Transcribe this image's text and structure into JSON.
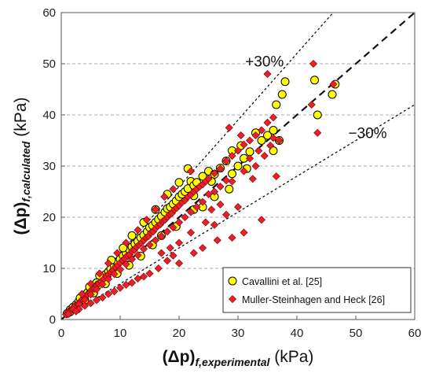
{
  "chart_data": {
    "type": "scatter",
    "title": "",
    "xlim": [
      0,
      60
    ],
    "ylim": [
      0,
      60
    ],
    "ticks": [
      "0",
      "10",
      "20",
      "30",
      "40",
      "50",
      "60"
    ],
    "grid": "horizontal dashed",
    "xlabel": {
      "main": "(Δp)",
      "sub": "f,experimental",
      "unit": " (kPa)"
    },
    "ylabel": {
      "main": "(Δp)",
      "sub": "f,calculated",
      "unit": " (kPa)"
    },
    "reference_lines": [
      {
        "label": "+30%",
        "slope": 1.3,
        "style": "dotted"
      },
      {
        "label": "",
        "slope": 1.0,
        "style": "dashed"
      },
      {
        "label": "−30%",
        "slope": 0.7,
        "style": "dotted"
      }
    ],
    "legend_position": "bottom-right",
    "series": [
      {
        "name": "Cavallini et al. [25]",
        "marker": "circle",
        "color": "#ffff00",
        "points": [
          [
            1.0,
            1.2
          ],
          [
            1.5,
            1.9
          ],
          [
            2.0,
            2.4
          ],
          [
            2.5,
            2.9
          ],
          [
            3.0,
            3.6
          ],
          [
            3.4,
            4.2
          ],
          [
            4.0,
            4.8
          ],
          [
            4.5,
            5.3
          ],
          [
            5.0,
            6.0
          ],
          [
            5.4,
            6.5
          ],
          [
            6.0,
            7.2
          ],
          [
            6.3,
            6.8
          ],
          [
            7.0,
            8.0
          ],
          [
            7.5,
            8.8
          ],
          [
            8.0,
            9.3
          ],
          [
            8.4,
            9.9
          ],
          [
            9.0,
            10.5
          ],
          [
            9.5,
            11.2
          ],
          [
            10.0,
            11.8
          ],
          [
            10.5,
            12.5
          ],
          [
            11.0,
            13.0
          ],
          [
            11.6,
            13.6
          ],
          [
            12.0,
            14.2
          ],
          [
            12.5,
            14.8
          ],
          [
            13.0,
            15.3
          ],
          [
            13.5,
            16.0
          ],
          [
            14.0,
            16.5
          ],
          [
            14.6,
            17.2
          ],
          [
            15.0,
            18.0
          ],
          [
            15.5,
            18.4
          ],
          [
            16.0,
            19.0
          ],
          [
            16.5,
            19.6
          ],
          [
            17.0,
            20.2
          ],
          [
            17.6,
            21.0
          ],
          [
            18.0,
            21.7
          ],
          [
            18.5,
            22.0
          ],
          [
            19.0,
            22.6
          ],
          [
            19.5,
            23.2
          ],
          [
            20.0,
            24.0
          ],
          [
            20.5,
            24.5
          ],
          [
            21.0,
            25.0
          ],
          [
            21.5,
            25.6
          ],
          [
            22.0,
            27.0
          ],
          [
            22.5,
            26.2
          ],
          [
            23.0,
            26.8
          ],
          [
            24.0,
            28.0
          ],
          [
            25.0,
            29.0
          ],
          [
            26.0,
            28.4
          ],
          [
            27.0,
            29.6
          ],
          [
            28.0,
            31.0
          ],
          [
            29.0,
            28.5
          ],
          [
            30.0,
            30.0
          ],
          [
            31.0,
            31.5
          ],
          [
            32.0,
            32.8
          ],
          [
            33.0,
            36.5
          ],
          [
            34.0,
            35.0
          ],
          [
            35.0,
            36.0
          ],
          [
            36.0,
            37.0
          ],
          [
            37.0,
            35.0
          ],
          [
            37.5,
            44.0
          ],
          [
            38.0,
            46.5
          ],
          [
            36.5,
            42.0
          ],
          [
            36.0,
            33.0
          ],
          [
            43.0,
            46.8
          ],
          [
            43.5,
            40.0
          ],
          [
            46.0,
            44.0
          ],
          [
            46.5,
            46.0
          ],
          [
            24.0,
            22.0
          ],
          [
            22.5,
            21.5
          ],
          [
            19.5,
            18.2
          ],
          [
            17.0,
            16.4
          ],
          [
            15.5,
            14.6
          ],
          [
            13.5,
            12.4
          ],
          [
            11.5,
            10.6
          ],
          [
            9.5,
            9.0
          ],
          [
            7.5,
            7.0
          ],
          [
            5.5,
            5.2
          ],
          [
            4.0,
            3.8
          ],
          [
            2.5,
            2.4
          ],
          [
            1.5,
            1.5
          ],
          [
            26.0,
            24.0
          ],
          [
            28.5,
            25.5
          ],
          [
            21.5,
            29.5
          ],
          [
            8.5,
            11.6
          ],
          [
            10.5,
            14.0
          ],
          [
            12.0,
            16.4
          ],
          [
            14.0,
            19.0
          ],
          [
            16.0,
            21.5
          ],
          [
            18.0,
            24.5
          ],
          [
            20.0,
            26.8
          ],
          [
            6.5,
            8.6
          ],
          [
            4.8,
            6.4
          ],
          [
            3.2,
            4.2
          ],
          [
            29.0,
            33.0
          ],
          [
            30.5,
            34.0
          ],
          [
            31.5,
            29.5
          ],
          [
            22.5,
            24.2
          ],
          [
            25.5,
            27.0
          ]
        ]
      },
      {
        "name": "Muller-Steinhagen and Heck [26]",
        "marker": "diamond",
        "color": "#e8202a",
        "points": [
          [
            0.8,
            1.0
          ],
          [
            1.2,
            1.5
          ],
          [
            1.6,
            1.6
          ],
          [
            2.0,
            2.3
          ],
          [
            2.4,
            2.8
          ],
          [
            2.8,
            3.0
          ],
          [
            3.2,
            3.5
          ],
          [
            3.6,
            4.0
          ],
          [
            4.0,
            4.3
          ],
          [
            4.4,
            4.9
          ],
          [
            4.8,
            5.2
          ],
          [
            5.2,
            5.9
          ],
          [
            5.6,
            6.0
          ],
          [
            6.0,
            6.6
          ],
          [
            6.4,
            7.0
          ],
          [
            6.8,
            7.5
          ],
          [
            7.2,
            7.9
          ],
          [
            7.6,
            8.5
          ],
          [
            8.0,
            8.8
          ],
          [
            8.4,
            9.3
          ],
          [
            8.8,
            9.6
          ],
          [
            9.2,
            10.3
          ],
          [
            9.6,
            10.6
          ],
          [
            10.0,
            11.1
          ],
          [
            10.4,
            11.6
          ],
          [
            10.8,
            11.9
          ],
          [
            11.2,
            12.5
          ],
          [
            11.6,
            12.7
          ],
          [
            12.0,
            13.4
          ],
          [
            12.4,
            13.6
          ],
          [
            12.8,
            14.2
          ],
          [
            13.2,
            14.6
          ],
          [
            13.6,
            15.0
          ],
          [
            14.0,
            15.5
          ],
          [
            14.4,
            16.0
          ],
          [
            14.8,
            16.3
          ],
          [
            15.2,
            17.0
          ],
          [
            15.6,
            17.2
          ],
          [
            16.0,
            17.8
          ],
          [
            16.4,
            18.3
          ],
          [
            16.8,
            18.6
          ],
          [
            17.2,
            19.2
          ],
          [
            17.6,
            19.5
          ],
          [
            18.0,
            20.0
          ],
          [
            18.4,
            20.6
          ],
          [
            18.8,
            20.8
          ],
          [
            19.2,
            21.5
          ],
          [
            19.6,
            21.8
          ],
          [
            20.0,
            22.3
          ],
          [
            20.5,
            22.9
          ],
          [
            21.0,
            23.3
          ],
          [
            21.5,
            24.0
          ],
          [
            22.0,
            24.4
          ],
          [
            22.5,
            25.0
          ],
          [
            23.0,
            25.5
          ],
          [
            23.5,
            26.0
          ],
          [
            24.0,
            26.4
          ],
          [
            24.5,
            27.0
          ],
          [
            25.0,
            27.5
          ],
          [
            26.0,
            28.6
          ],
          [
            27.0,
            29.5
          ],
          [
            28.0,
            31.0
          ],
          [
            29.0,
            32.0
          ],
          [
            30.0,
            33.0
          ],
          [
            31.0,
            34.2
          ],
          [
            32.0,
            35.0
          ],
          [
            33.0,
            36.0
          ],
          [
            34.0,
            37.0
          ],
          [
            35.0,
            38.5
          ],
          [
            36.0,
            39.5
          ],
          [
            37.0,
            35.0
          ],
          [
            35.5,
            34.0
          ],
          [
            34.5,
            32.0
          ],
          [
            33.0,
            30.0
          ],
          [
            31.0,
            29.0
          ],
          [
            29.0,
            27.0
          ],
          [
            28.0,
            27.2
          ],
          [
            27.0,
            26.0
          ],
          [
            26.0,
            25.0
          ],
          [
            25.0,
            24.5
          ],
          [
            24.0,
            23.0
          ],
          [
            23.0,
            22.0
          ],
          [
            22.0,
            21.0
          ],
          [
            21.0,
            20.0
          ],
          [
            20.0,
            19.0
          ],
          [
            19.0,
            18.0
          ],
          [
            18.0,
            17.2
          ],
          [
            17.0,
            16.3
          ],
          [
            16.0,
            15.5
          ],
          [
            15.0,
            14.6
          ],
          [
            14.0,
            13.8
          ],
          [
            13.0,
            12.6
          ],
          [
            12.0,
            11.8
          ],
          [
            11.0,
            10.8
          ],
          [
            10.0,
            9.8
          ],
          [
            9.0,
            8.9
          ],
          [
            8.0,
            7.9
          ],
          [
            7.0,
            6.9
          ],
          [
            6.0,
            5.9
          ],
          [
            5.0,
            4.9
          ],
          [
            4.0,
            3.9
          ],
          [
            3.0,
            3.0
          ],
          [
            2.0,
            2.0
          ],
          [
            1.2,
            1.1
          ],
          [
            34.0,
            19.5
          ],
          [
            31.0,
            17.0
          ],
          [
            29.0,
            16.0
          ],
          [
            26.5,
            15.5
          ],
          [
            24.0,
            14.0
          ],
          [
            22.5,
            13.0
          ],
          [
            20.0,
            11.0
          ],
          [
            19.0,
            12.5
          ],
          [
            18.0,
            11.5
          ],
          [
            16.5,
            10.0
          ],
          [
            15.0,
            9.0
          ],
          [
            14.0,
            8.4
          ],
          [
            13.0,
            8.0
          ],
          [
            12.0,
            7.2
          ],
          [
            11.0,
            6.8
          ],
          [
            10.0,
            6.2
          ],
          [
            9.0,
            5.5
          ],
          [
            8.0,
            5.0
          ],
          [
            7.0,
            4.3
          ],
          [
            6.0,
            3.8
          ],
          [
            5.0,
            3.2
          ],
          [
            4.0,
            2.7
          ],
          [
            3.0,
            2.0
          ],
          [
            2.5,
            1.6
          ],
          [
            26.0,
            18.5
          ],
          [
            28.0,
            20.5
          ],
          [
            30.0,
            22.0
          ],
          [
            24.5,
            19.0
          ],
          [
            22.0,
            17.0
          ],
          [
            20.0,
            15.0
          ],
          [
            18.5,
            14.0
          ],
          [
            17.0,
            13.0
          ],
          [
            35.0,
            48.0
          ],
          [
            42.8,
            50.0
          ],
          [
            42.5,
            42.0
          ],
          [
            43.5,
            36.5
          ],
          [
            46.2,
            46.0
          ],
          [
            36.0,
            35.5
          ],
          [
            33.5,
            33.0
          ],
          [
            28.5,
            37.5
          ],
          [
            22.0,
            29.0
          ],
          [
            19.0,
            25.5
          ],
          [
            17.5,
            24.0
          ],
          [
            16.0,
            21.5
          ],
          [
            14.5,
            19.5
          ],
          [
            13.0,
            17.5
          ],
          [
            11.0,
            15.0
          ],
          [
            9.5,
            13.0
          ],
          [
            8.0,
            11.0
          ],
          [
            6.5,
            9.0
          ],
          [
            5.0,
            7.0
          ],
          [
            3.5,
            5.0
          ],
          [
            30.5,
            36.0
          ],
          [
            32.0,
            31.5
          ],
          [
            36.5,
            28.0
          ],
          [
            32.5,
            27.5
          ],
          [
            27.0,
            22.5
          ],
          [
            25.5,
            21.5
          ]
        ]
      }
    ]
  }
}
